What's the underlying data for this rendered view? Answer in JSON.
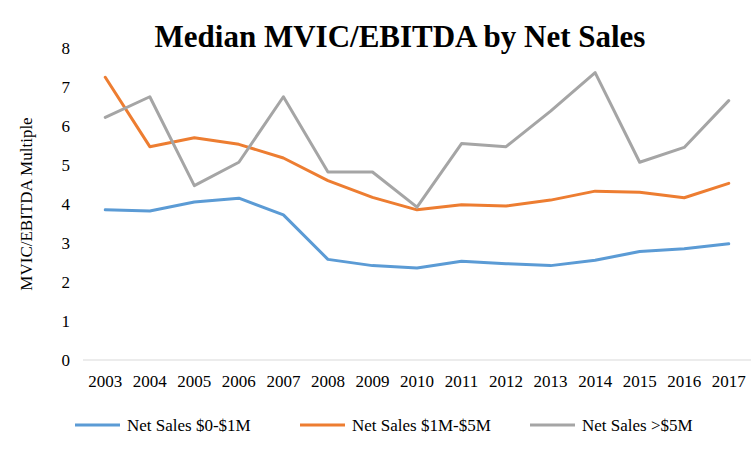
{
  "chart_data": {
    "type": "line",
    "title": "Median MVIC/EBITDA by Net Sales",
    "y_label": "MVIC/EBITDA Multiple",
    "categories": [
      "2003",
      "2004",
      "2005",
      "2006",
      "2007",
      "2008",
      "2009",
      "2010",
      "2011",
      "2012",
      "2013",
      "2014",
      "2015",
      "2016",
      "2017"
    ],
    "series": [
      {
        "name": "Net Sales $0-$1M",
        "color": "#5b9bd5",
        "values": [
          3.85,
          3.82,
          4.05,
          4.15,
          3.72,
          2.58,
          2.42,
          2.36,
          2.53,
          2.47,
          2.42,
          2.56,
          2.78,
          2.85,
          2.98
        ]
      },
      {
        "name": "Net Sales $1M-$5M",
        "color": "#ed7d31",
        "values": [
          7.25,
          5.47,
          5.7,
          5.53,
          5.18,
          4.6,
          4.17,
          3.85,
          3.98,
          3.95,
          4.1,
          4.33,
          4.3,
          4.16,
          4.53
        ]
      },
      {
        "name": "Net Sales >$5M",
        "color": "#a5a5a5",
        "values": [
          6.22,
          6.75,
          4.47,
          5.07,
          6.75,
          4.82,
          4.82,
          3.92,
          5.55,
          5.47,
          6.38,
          7.37,
          5.07,
          5.45,
          6.65
        ]
      }
    ],
    "ylim": [
      0,
      8
    ],
    "yticks": [
      0,
      1,
      2,
      3,
      4,
      5,
      6,
      7,
      8
    ],
    "grid": false,
    "legend": "bottom"
  }
}
